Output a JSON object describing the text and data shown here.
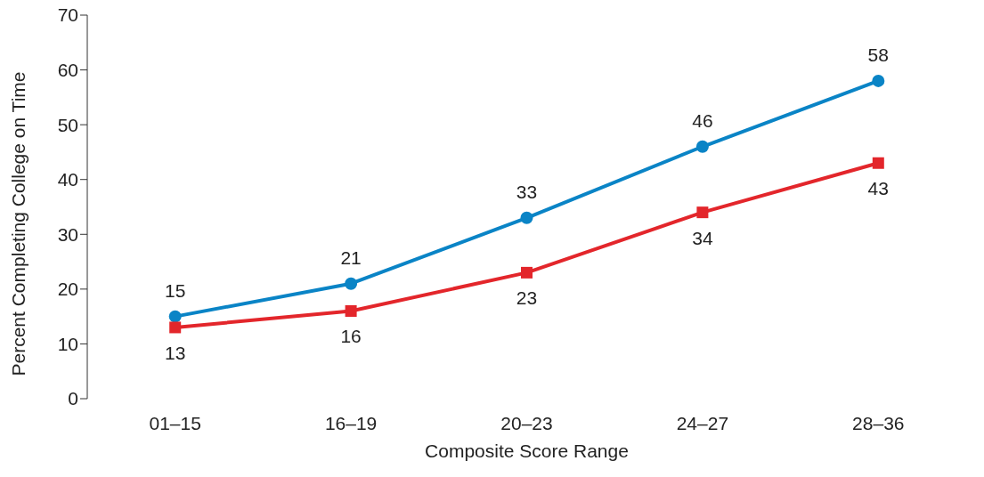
{
  "chart_data": {
    "type": "line",
    "xlabel": "Composite Score Range",
    "ylabel": "Percent Completing College on Time",
    "categories": [
      "01–15",
      "16–19",
      "20–23",
      "24–27",
      "28–36"
    ],
    "series": [
      {
        "color": "#0a84c6",
        "marker": "circle",
        "values": [
          15,
          21,
          33,
          46,
          58
        ]
      },
      {
        "color": "#e3262b",
        "marker": "square",
        "values": [
          13,
          16,
          23,
          34,
          43
        ]
      }
    ],
    "ylim": [
      0,
      70
    ],
    "yticks": [
      0,
      10,
      20,
      30,
      40,
      50,
      60,
      70
    ],
    "data_labels": true,
    "legend": false,
    "grid": false
  }
}
